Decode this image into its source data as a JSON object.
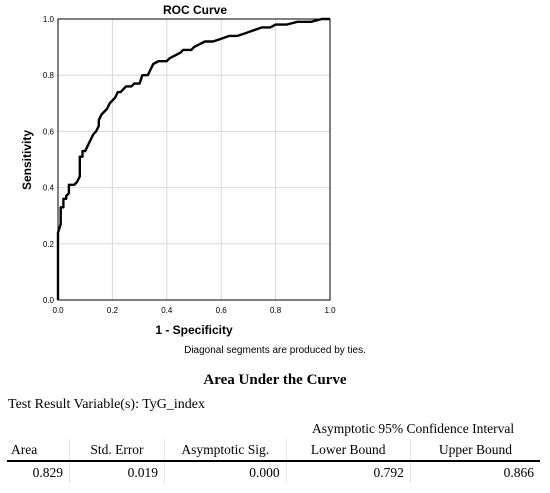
{
  "chart_data": {
    "type": "line",
    "title": "ROC Curve",
    "xlabel": "1 - Specificity",
    "ylabel": "Sensitivity",
    "xlim": [
      0.0,
      1.0
    ],
    "ylim": [
      0.0,
      1.0
    ],
    "xticks": [
      "0.0",
      "0.2",
      "0.4",
      "0.6",
      "0.8",
      "1.0"
    ],
    "yticks": [
      "0.0",
      "0.2",
      "0.4",
      "0.6",
      "0.8",
      "1.0"
    ],
    "grid": true,
    "legend": "none",
    "line_color": "#000000",
    "series": [
      {
        "points": [
          [
            0.0,
            0.0
          ],
          [
            0.0,
            0.24
          ],
          [
            0.01,
            0.27
          ],
          [
            0.01,
            0.33
          ],
          [
            0.02,
            0.33
          ],
          [
            0.02,
            0.36
          ],
          [
            0.03,
            0.36
          ],
          [
            0.03,
            0.37
          ],
          [
            0.04,
            0.38
          ],
          [
            0.04,
            0.41
          ],
          [
            0.06,
            0.41
          ],
          [
            0.07,
            0.42
          ],
          [
            0.08,
            0.44
          ],
          [
            0.08,
            0.51
          ],
          [
            0.09,
            0.51
          ],
          [
            0.09,
            0.53
          ],
          [
            0.1,
            0.53
          ],
          [
            0.11,
            0.55
          ],
          [
            0.12,
            0.57
          ],
          [
            0.13,
            0.59
          ],
          [
            0.14,
            0.6
          ],
          [
            0.15,
            0.62
          ],
          [
            0.15,
            0.64
          ],
          [
            0.16,
            0.66
          ],
          [
            0.18,
            0.68
          ],
          [
            0.19,
            0.7
          ],
          [
            0.2,
            0.71
          ],
          [
            0.21,
            0.72
          ],
          [
            0.22,
            0.74
          ],
          [
            0.23,
            0.74
          ],
          [
            0.24,
            0.75
          ],
          [
            0.25,
            0.76
          ],
          [
            0.27,
            0.76
          ],
          [
            0.28,
            0.77
          ],
          [
            0.3,
            0.77
          ],
          [
            0.31,
            0.8
          ],
          [
            0.33,
            0.8
          ],
          [
            0.34,
            0.82
          ],
          [
            0.35,
            0.84
          ],
          [
            0.37,
            0.85
          ],
          [
            0.4,
            0.85
          ],
          [
            0.41,
            0.86
          ],
          [
            0.43,
            0.87
          ],
          [
            0.45,
            0.88
          ],
          [
            0.46,
            0.89
          ],
          [
            0.49,
            0.89
          ],
          [
            0.5,
            0.9
          ],
          [
            0.52,
            0.91
          ],
          [
            0.54,
            0.92
          ],
          [
            0.57,
            0.92
          ],
          [
            0.6,
            0.93
          ],
          [
            0.63,
            0.94
          ],
          [
            0.66,
            0.94
          ],
          [
            0.69,
            0.95
          ],
          [
            0.72,
            0.96
          ],
          [
            0.75,
            0.97
          ],
          [
            0.78,
            0.97
          ],
          [
            0.8,
            0.98
          ],
          [
            0.84,
            0.98
          ],
          [
            0.88,
            0.99
          ],
          [
            0.93,
            0.99
          ],
          [
            0.97,
            1.0
          ],
          [
            1.0,
            1.0
          ]
        ]
      }
    ]
  },
  "note": "Diagonal segments are produced by ties.",
  "auc_table": {
    "title": "Area Under the Curve",
    "subtitle": "Test Result Variable(s): TyG_index",
    "group_header": "Asymptotic 95% Confidence Interval",
    "columns": [
      "Area",
      "Std. Error",
      "Asymptotic Sig.",
      "Lower Bound",
      "Upper Bound"
    ],
    "row": [
      "0.829",
      "0.019",
      "0.000",
      "0.792",
      "0.866"
    ]
  }
}
